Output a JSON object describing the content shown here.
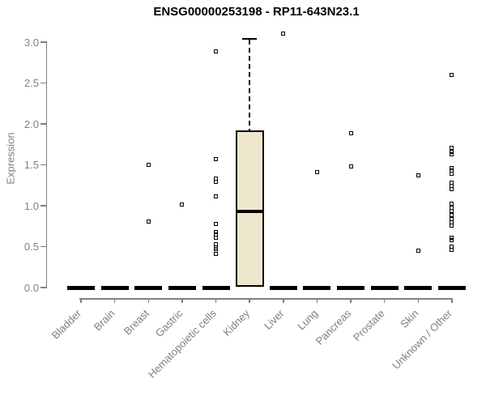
{
  "chart_data": {
    "type": "boxplot",
    "title": "ENSG00000253198 - RP11-643N23.1",
    "ylabel": "Expression",
    "xlabel": "",
    "ylim": [
      0.0,
      3.0
    ],
    "yticks": [
      0.0,
      0.5,
      1.0,
      1.5,
      2.0,
      2.5,
      3.0
    ],
    "grid": false,
    "legend": "none",
    "colors": {
      "box_fill": "#EDE8CD",
      "box_border": "#000000",
      "axis": "#808080",
      "tick_text": "#7f7f7f",
      "title_text": "#000000"
    },
    "categories": [
      "Bladder",
      "Brain",
      "Breast",
      "Gastric",
      "Hematopoietic cells",
      "Kidney",
      "Liver",
      "Lung",
      "Pancreas",
      "Prostate",
      "Skin",
      "Unknown / Other"
    ],
    "boxes": [
      {
        "category": "Bladder",
        "q1": 0,
        "median": 0,
        "q3": 0,
        "whisker_low": 0,
        "whisker_high": 0,
        "outliers": []
      },
      {
        "category": "Brain",
        "q1": 0,
        "median": 0,
        "q3": 0,
        "whisker_low": 0,
        "whisker_high": 0,
        "outliers": []
      },
      {
        "category": "Breast",
        "q1": 0,
        "median": 0,
        "q3": 0,
        "whisker_low": 0,
        "whisker_high": 0,
        "outliers": [
          1.5,
          0.81
        ]
      },
      {
        "category": "Gastric",
        "q1": 0,
        "median": 0,
        "q3": 0,
        "whisker_low": 0,
        "whisker_high": 0,
        "outliers": [
          1.01
        ]
      },
      {
        "category": "Hematopoietic cells",
        "q1": 0,
        "median": 0,
        "q3": 0,
        "whisker_low": 0,
        "whisker_high": 0,
        "outliers": [
          2.89,
          1.57,
          1.33,
          1.29,
          1.11,
          0.78,
          0.68,
          0.65,
          0.61,
          0.53,
          0.49,
          0.47,
          0.41
        ]
      },
      {
        "category": "Kidney",
        "q1": 0.01,
        "median": 0.93,
        "q3": 1.92,
        "whisker_low": 0.01,
        "whisker_high": 3.04,
        "outliers": []
      },
      {
        "category": "Liver",
        "q1": 0,
        "median": 0,
        "q3": 0,
        "whisker_low": 0,
        "whisker_high": 0,
        "outliers": [
          3.1
        ]
      },
      {
        "category": "Lung",
        "q1": 0,
        "median": 0,
        "q3": 0,
        "whisker_low": 0,
        "whisker_high": 0,
        "outliers": [
          1.41
        ]
      },
      {
        "category": "Pancreas",
        "q1": 0,
        "median": 0,
        "q3": 0,
        "whisker_low": 0,
        "whisker_high": 0,
        "outliers": [
          1.89,
          1.48
        ]
      },
      {
        "category": "Prostate",
        "q1": 0,
        "median": 0,
        "q3": 0,
        "whisker_low": 0,
        "whisker_high": 0,
        "outliers": []
      },
      {
        "category": "Skin",
        "q1": 0,
        "median": 0,
        "q3": 0,
        "whisker_low": 0,
        "whisker_high": 0,
        "outliers": [
          1.37,
          0.45
        ]
      },
      {
        "category": "Unknown / Other",
        "q1": 0,
        "median": 0,
        "q3": 0,
        "whisker_low": 0,
        "whisker_high": 0,
        "outliers": [
          2.6,
          1.71,
          1.66,
          1.63,
          1.46,
          1.43,
          1.39,
          1.28,
          1.24,
          1.2,
          1.02,
          0.98,
          0.94,
          0.89,
          0.84,
          0.8,
          0.76,
          0.61,
          0.58,
          0.5,
          0.46
        ]
      }
    ]
  }
}
